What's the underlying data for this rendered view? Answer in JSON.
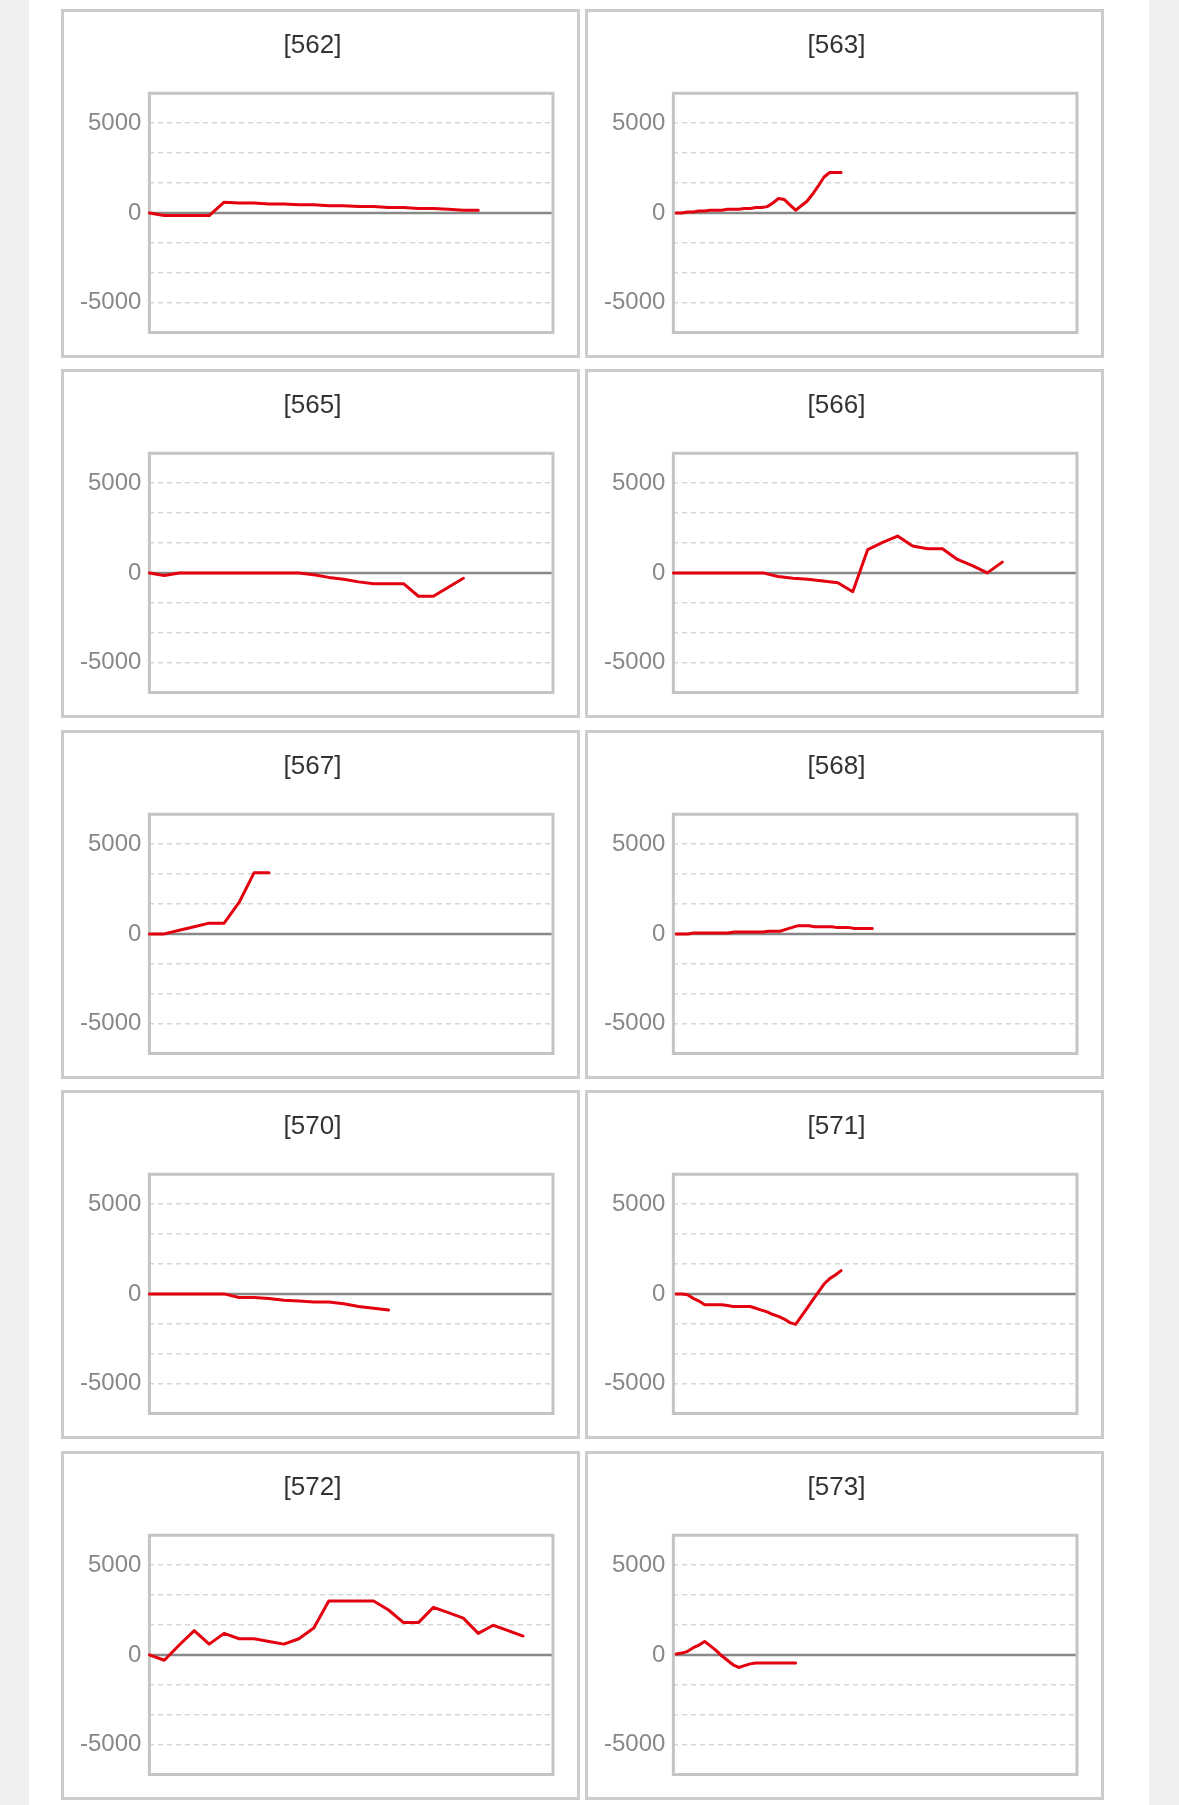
{
  "chart_data": [
    {
      "type": "line",
      "title": "[562]",
      "categories": [
        null,
        null,
        null,
        null,
        null,
        null,
        null,
        null,
        null,
        null,
        null,
        null,
        null,
        null,
        null,
        null,
        null,
        null,
        null,
        null,
        null,
        null,
        null,
        null,
        null,
        null,
        null,
        null
      ],
      "series": [
        {
          "color": "#e3000f",
          "values": [
            0,
            -150,
            -150,
            -150,
            -150,
            600,
            550,
            550,
            500,
            500,
            450,
            450,
            400,
            400,
            350,
            350,
            300,
            300,
            250,
            250,
            200,
            150,
            150,
            null,
            null,
            null,
            null,
            null
          ]
        }
      ],
      "ylim": [
        -6667,
        6667
      ],
      "yticks": [
        -5000,
        {
          "value": -3333,
          "label": null
        },
        {
          "value": -1667,
          "label": null
        },
        0,
        {
          "value": 1667,
          "label": null
        },
        {
          "value": 3333,
          "label": null
        },
        5000
      ],
      "grid": "y",
      "tick_labels": "y",
      "marker": "none",
      "ref_lines": [
        {
          "axis": "y",
          "value": 0,
          "color": "#888888"
        }
      ]
    },
    {
      "type": "line",
      "title": "[563]",
      "categories": [
        null,
        null,
        null,
        null,
        null,
        null,
        null,
        null,
        null,
        null,
        null,
        null,
        null,
        null,
        null,
        null,
        null,
        null,
        null,
        null,
        null,
        null,
        null,
        null,
        null,
        null,
        null,
        null,
        null,
        null,
        null,
        null,
        null,
        null,
        null,
        null,
        null,
        null,
        null,
        null,
        null,
        null,
        null,
        null,
        null,
        null,
        null,
        null,
        null,
        null,
        null,
        null,
        null,
        null,
        null,
        null,
        null,
        null,
        null,
        null,
        null,
        null,
        null,
        null,
        null,
        null,
        null,
        null,
        null,
        null,
        null
      ],
      "series": [
        {
          "color": "#e3000f",
          "values": [
            0,
            0,
            50,
            50,
            100,
            100,
            150,
            150,
            150,
            200,
            200,
            200,
            250,
            250,
            300,
            300,
            350,
            550,
            800,
            750,
            450,
            150,
            400,
            650,
            1050,
            1500,
            2000,
            2250,
            2250,
            2250,
            null,
            null,
            null,
            null,
            null,
            null,
            null,
            null,
            null,
            null,
            null,
            null,
            null,
            null,
            null,
            null,
            null,
            null,
            null,
            null,
            null,
            null,
            null,
            null,
            null,
            null,
            null,
            null,
            null,
            null,
            null,
            null,
            null,
            null,
            null,
            null,
            null,
            null,
            null,
            null,
            null
          ]
        }
      ],
      "ylim": [
        -6667,
        6667
      ],
      "yticks": [
        -5000,
        {
          "value": -3333,
          "label": null
        },
        {
          "value": -1667,
          "label": null
        },
        0,
        {
          "value": 1667,
          "label": null
        },
        {
          "value": 3333,
          "label": null
        },
        5000
      ],
      "grid": "y",
      "tick_labels": "y",
      "marker": "none",
      "ref_lines": [
        {
          "axis": "y",
          "value": 0,
          "color": "#888888"
        }
      ]
    },
    {
      "type": "line",
      "title": "[565]",
      "categories": [
        null,
        null,
        null,
        null,
        null,
        null,
        null,
        null,
        null,
        null,
        null,
        null,
        null,
        null,
        null,
        null,
        null,
        null,
        null,
        null,
        null,
        null,
        null,
        null,
        null,
        null,
        null,
        null
      ],
      "series": [
        {
          "color": "#e3000f",
          "values": [
            0,
            -150,
            0,
            0,
            0,
            0,
            0,
            0,
            0,
            0,
            0,
            -100,
            -250,
            -350,
            -500,
            -600,
            -600,
            -600,
            -1300,
            -1300,
            -800,
            -300,
            null,
            null,
            null,
            null,
            null,
            null
          ]
        }
      ],
      "ylim": [
        -6667,
        6667
      ],
      "yticks": [
        -5000,
        {
          "value": -3333,
          "label": null
        },
        {
          "value": -1667,
          "label": null
        },
        0,
        {
          "value": 1667,
          "label": null
        },
        {
          "value": 3333,
          "label": null
        },
        5000
      ],
      "grid": "y",
      "tick_labels": "y",
      "marker": "none",
      "ref_lines": [
        {
          "axis": "y",
          "value": 0,
          "color": "#888888"
        }
      ]
    },
    {
      "type": "line",
      "title": "[566]",
      "categories": [
        null,
        null,
        null,
        null,
        null,
        null,
        null,
        null,
        null,
        null,
        null,
        null,
        null,
        null,
        null,
        null,
        null,
        null,
        null,
        null,
        null,
        null,
        null,
        null,
        null,
        null,
        null,
        null
      ],
      "series": [
        {
          "color": "#e3000f",
          "values": [
            0,
            0,
            0,
            0,
            0,
            0,
            0,
            -200,
            -300,
            -350,
            -450,
            -550,
            -1050,
            1300,
            1700,
            2050,
            1500,
            1350,
            1350,
            750,
            400,
            0,
            600,
            null,
            null,
            null,
            null,
            null
          ]
        }
      ],
      "ylim": [
        -6667,
        6667
      ],
      "yticks": [
        -5000,
        {
          "value": -3333,
          "label": null
        },
        {
          "value": -1667,
          "label": null
        },
        0,
        {
          "value": 1667,
          "label": null
        },
        {
          "value": 3333,
          "label": null
        },
        5000
      ],
      "grid": "y",
      "tick_labels": "y",
      "marker": "none",
      "ref_lines": [
        {
          "axis": "y",
          "value": 0,
          "color": "#888888"
        }
      ]
    },
    {
      "type": "line",
      "title": "[567]",
      "categories": [
        null,
        null,
        null,
        null,
        null,
        null,
        null,
        null,
        null,
        null,
        null,
        null,
        null,
        null,
        null,
        null,
        null,
        null,
        null,
        null,
        null,
        null,
        null,
        null,
        null,
        null,
        null,
        null
      ],
      "series": [
        {
          "color": "#e3000f",
          "values": [
            0,
            0,
            200,
            400,
            600,
            600,
            1750,
            3400,
            3400,
            null,
            null,
            null,
            null,
            null,
            null,
            null,
            null,
            null,
            null,
            null,
            null,
            null,
            null,
            null,
            null,
            null,
            null,
            null
          ]
        }
      ],
      "ylim": [
        -6667,
        6667
      ],
      "yticks": [
        -5000,
        {
          "value": -3333,
          "label": null
        },
        {
          "value": -1667,
          "label": null
        },
        0,
        {
          "value": 1667,
          "label": null
        },
        {
          "value": 3333,
          "label": null
        },
        5000
      ],
      "grid": "y",
      "tick_labels": "y",
      "marker": "none",
      "ref_lines": [
        {
          "axis": "y",
          "value": 0,
          "color": "#888888"
        }
      ]
    },
    {
      "type": "line",
      "title": "[568]",
      "categories": [
        null,
        null,
        null,
        null,
        null,
        null,
        null,
        null,
        null,
        null,
        null,
        null,
        null,
        null,
        null,
        null,
        null,
        null,
        null,
        null,
        null,
        null,
        null,
        null,
        null,
        null,
        null,
        null,
        null,
        null,
        null,
        null,
        null,
        null,
        null,
        null,
        null,
        null,
        null,
        null,
        null,
        null,
        null,
        null,
        null,
        null,
        null,
        null,
        null,
        null,
        null,
        null,
        null,
        null,
        null,
        null,
        null,
        null,
        null,
        null,
        null,
        null,
        null,
        null,
        null,
        null,
        null,
        null,
        null,
        null
      ],
      "series": [
        {
          "color": "#e3000f",
          "values": [
            0,
            0,
            0,
            50,
            50,
            50,
            50,
            50,
            50,
            50,
            100,
            100,
            100,
            100,
            100,
            100,
            150,
            150,
            150,
            250,
            350,
            450,
            450,
            450,
            400,
            400,
            400,
            400,
            350,
            350,
            350,
            300,
            300,
            300,
            300,
            null,
            null,
            null,
            null,
            null,
            null,
            null,
            null,
            null,
            null,
            null,
            null,
            null,
            null,
            null,
            null,
            null,
            null,
            null,
            null,
            null,
            null,
            null,
            null,
            null,
            null,
            null,
            null,
            null,
            null,
            null,
            null,
            null,
            null,
            null
          ]
        }
      ],
      "ylim": [
        -6667,
        6667
      ],
      "yticks": [
        -5000,
        {
          "value": -3333,
          "label": null
        },
        {
          "value": -1667,
          "label": null
        },
        0,
        {
          "value": 1667,
          "label": null
        },
        {
          "value": 3333,
          "label": null
        },
        5000
      ],
      "grid": "y",
      "tick_labels": "y",
      "marker": "none",
      "ref_lines": [
        {
          "axis": "y",
          "value": 0,
          "color": "#888888"
        }
      ]
    },
    {
      "type": "line",
      "title": "[570]",
      "categories": [
        null,
        null,
        null,
        null,
        null,
        null,
        null,
        null,
        null,
        null,
        null,
        null,
        null,
        null,
        null,
        null,
        null,
        null,
        null,
        null,
        null,
        null,
        null,
        null,
        null,
        null,
        null,
        null
      ],
      "series": [
        {
          "color": "#e3000f",
          "values": [
            0,
            0,
            0,
            0,
            0,
            0,
            -200,
            -200,
            -250,
            -350,
            -400,
            -450,
            -450,
            -550,
            -700,
            -800,
            -900,
            null,
            null,
            null,
            null,
            null,
            null,
            null,
            null,
            null,
            null,
            null
          ]
        }
      ],
      "ylim": [
        -6667,
        6667
      ],
      "yticks": [
        -5000,
        {
          "value": -3333,
          "label": null
        },
        {
          "value": -1667,
          "label": null
        },
        0,
        {
          "value": 1667,
          "label": null
        },
        {
          "value": 3333,
          "label": null
        },
        5000
      ],
      "grid": "y",
      "tick_labels": "y",
      "marker": "none",
      "ref_lines": [
        {
          "axis": "y",
          "value": 0,
          "color": "#888888"
        }
      ]
    },
    {
      "type": "line",
      "title": "[571]",
      "categories": [
        null,
        null,
        null,
        null,
        null,
        null,
        null,
        null,
        null,
        null,
        null,
        null,
        null,
        null,
        null,
        null,
        null,
        null,
        null,
        null,
        null,
        null,
        null,
        null,
        null,
        null,
        null,
        null,
        null,
        null,
        null,
        null,
        null,
        null,
        null,
        null,
        null,
        null,
        null,
        null,
        null,
        null,
        null,
        null,
        null,
        null,
        null,
        null,
        null,
        null,
        null,
        null,
        null,
        null,
        null,
        null,
        null,
        null,
        null,
        null,
        null,
        null,
        null,
        null,
        null,
        null,
        null,
        null,
        null,
        null,
        null
      ],
      "series": [
        {
          "color": "#e3000f",
          "values": [
            0,
            0,
            -50,
            -250,
            -400,
            -600,
            -600,
            -600,
            -600,
            -650,
            -700,
            -700,
            -700,
            -700,
            -800,
            -900,
            -1000,
            -1150,
            -1250,
            -1400,
            -1600,
            -1700,
            -1250,
            -800,
            -350,
            100,
            550,
            850,
            1050,
            1300,
            null,
            null,
            null,
            null,
            null,
            null,
            null,
            null,
            null,
            null,
            null,
            null,
            null,
            null,
            null,
            null,
            null,
            null,
            null,
            null,
            null,
            null,
            null,
            null,
            null,
            null,
            null,
            null,
            null,
            null,
            null,
            null,
            null,
            null,
            null,
            null,
            null,
            null,
            null,
            null,
            null
          ]
        }
      ],
      "ylim": [
        -6667,
        6667
      ],
      "yticks": [
        -5000,
        {
          "value": -3333,
          "label": null
        },
        {
          "value": -1667,
          "label": null
        },
        0,
        {
          "value": 1667,
          "label": null
        },
        {
          "value": 3333,
          "label": null
        },
        5000
      ],
      "grid": "y",
      "tick_labels": "y",
      "marker": "none",
      "ref_lines": [
        {
          "axis": "y",
          "value": 0,
          "color": "#888888"
        }
      ]
    },
    {
      "type": "line",
      "title": "[572]",
      "categories": [
        null,
        null,
        null,
        null,
        null,
        null,
        null,
        null,
        null,
        null,
        null,
        null,
        null,
        null,
        null,
        null,
        null,
        null,
        null,
        null,
        null,
        null,
        null,
        null,
        null,
        null,
        null,
        null
      ],
      "series": [
        {
          "color": "#e3000f",
          "values": [
            0,
            -300,
            550,
            1350,
            600,
            1200,
            900,
            900,
            750,
            600,
            900,
            1500,
            3000,
            3000,
            3000,
            3000,
            2500,
            1800,
            1800,
            2650,
            2350,
            2050,
            1200,
            1650,
            1350,
            1050,
            null,
            null
          ]
        }
      ],
      "ylim": [
        -6667,
        6667
      ],
      "yticks": [
        -5000,
        {
          "value": -3333,
          "label": null
        },
        {
          "value": -1667,
          "label": null
        },
        0,
        {
          "value": 1667,
          "label": null
        },
        {
          "value": 3333,
          "label": null
        },
        5000
      ],
      "grid": "y",
      "tick_labels": "y",
      "marker": "none",
      "ref_lines": [
        {
          "axis": "y",
          "value": 0,
          "color": "#888888"
        }
      ]
    },
    {
      "type": "line",
      "title": "[573]",
      "categories": [
        null,
        null,
        null,
        null,
        null,
        null,
        null,
        null,
        null,
        null,
        null,
        null,
        null,
        null,
        null,
        null,
        null,
        null,
        null,
        null,
        null,
        null,
        null,
        null,
        null,
        null,
        null,
        null,
        null,
        null,
        null,
        null,
        null,
        null,
        null,
        null,
        null,
        null,
        null,
        null,
        null,
        null,
        null,
        null,
        null,
        null,
        null,
        null,
        null,
        null,
        null,
        null,
        null,
        null,
        null,
        null,
        null,
        null,
        null,
        null,
        null,
        null,
        null,
        null,
        null,
        null,
        null,
        null,
        null,
        null,
        null
      ],
      "series": [
        {
          "color": "#e3000f",
          "values": [
            50,
            100,
            200,
            400,
            550,
            750,
            500,
            250,
            -50,
            -300,
            -550,
            -700,
            -600,
            -500,
            -450,
            -450,
            -450,
            -450,
            -450,
            -450,
            -450,
            -450,
            null,
            null,
            null,
            null,
            null,
            null,
            null,
            null,
            null,
            null,
            null,
            null,
            null,
            null,
            null,
            null,
            null,
            null,
            null,
            null,
            null,
            null,
            null,
            null,
            null,
            null,
            null,
            null,
            null,
            null,
            null,
            null,
            null,
            null,
            null,
            null,
            null,
            null,
            null,
            null,
            null,
            null,
            null,
            null,
            null,
            null,
            null,
            null,
            null
          ]
        }
      ],
      "ylim": [
        -6667,
        6667
      ],
      "yticks": [
        -5000,
        {
          "value": -3333,
          "label": null
        },
        {
          "value": -1667,
          "label": null
        },
        0,
        {
          "value": 1667,
          "label": null
        },
        {
          "value": 3333,
          "label": null
        },
        5000
      ],
      "grid": "y",
      "tick_labels": "y",
      "marker": "none",
      "ref_lines": [
        {
          "axis": "y",
          "value": 0,
          "color": "#888888"
        }
      ]
    }
  ]
}
